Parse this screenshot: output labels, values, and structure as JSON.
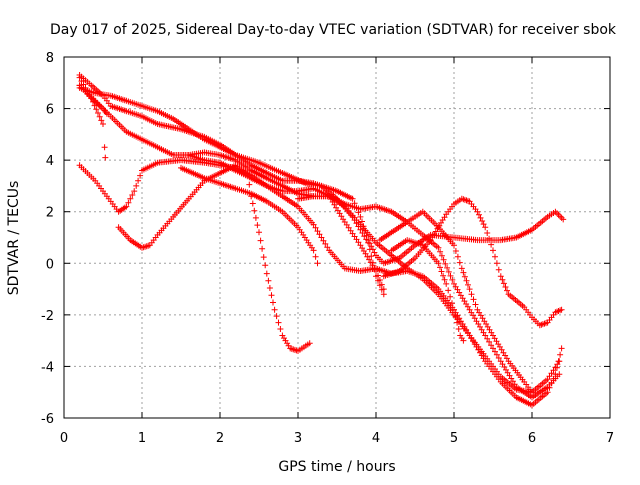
{
  "chart_data": {
    "type": "scatter",
    "title": "Day 017 of 2025, Sidereal Day-to-day VTEC variation (SDTVAR) for receiver sbok",
    "xlabel": "GPS time / hours",
    "ylabel": "SDTVAR / TECUs",
    "xlim": [
      0,
      7
    ],
    "ylim": [
      -6,
      8
    ],
    "xticks": [
      "0",
      "1",
      "2",
      "3",
      "4",
      "5",
      "6",
      "7"
    ],
    "yticks": [
      "-6",
      "-4",
      "-2",
      "0",
      "2",
      "4",
      "6",
      "8"
    ],
    "grid": true,
    "marker": "+",
    "color": "#ff0000",
    "series": [
      {
        "name": "track-1",
        "points": [
          [
            0.2,
            7.2
          ],
          [
            0.35,
            6.4
          ],
          [
            0.5,
            5.4
          ],
          [
            0.52,
            4.5
          ],
          [
            0.53,
            4.1
          ]
        ]
      },
      {
        "name": "track-2",
        "points": [
          [
            0.2,
            7.3
          ],
          [
            0.35,
            6.9
          ],
          [
            0.5,
            6.5
          ],
          [
            0.6,
            6.1
          ],
          [
            0.8,
            5.9
          ],
          [
            1.0,
            5.7
          ],
          [
            1.2,
            5.4
          ],
          [
            1.5,
            5.2
          ],
          [
            1.8,
            4.9
          ],
          [
            2.0,
            4.6
          ],
          [
            2.2,
            4.2
          ],
          [
            2.5,
            3.9
          ],
          [
            2.8,
            3.5
          ],
          [
            3.1,
            3.1
          ],
          [
            3.3,
            3.0
          ],
          [
            3.5,
            2.8
          ],
          [
            3.7,
            2.5
          ],
          [
            3.8,
            1.8
          ],
          [
            3.9,
            0.9
          ],
          [
            4.0,
            0.3
          ],
          [
            4.1,
            0.0
          ],
          [
            4.3,
            0.2
          ],
          [
            4.5,
            0.7
          ],
          [
            4.7,
            1.1
          ],
          [
            5.0,
            1.0
          ],
          [
            5.3,
            0.9
          ],
          [
            5.6,
            0.9
          ],
          [
            5.8,
            1.0
          ],
          [
            6.0,
            1.3
          ],
          [
            6.2,
            1.8
          ],
          [
            6.3,
            2.0
          ],
          [
            6.4,
            1.7
          ]
        ]
      },
      {
        "name": "track-3",
        "points": [
          [
            0.2,
            6.9
          ],
          [
            0.4,
            6.3
          ],
          [
            0.6,
            5.7
          ],
          [
            0.8,
            5.1
          ],
          [
            1.0,
            4.8
          ],
          [
            1.2,
            4.5
          ],
          [
            1.4,
            4.2
          ],
          [
            1.6,
            4.2
          ],
          [
            1.8,
            4.3
          ],
          [
            2.0,
            4.2
          ],
          [
            2.2,
            4.0
          ],
          [
            2.4,
            3.6
          ],
          [
            2.6,
            3.3
          ],
          [
            2.8,
            3.0
          ],
          [
            3.0,
            2.7
          ],
          [
            3.2,
            2.6
          ],
          [
            3.4,
            2.6
          ],
          [
            3.6,
            2.3
          ],
          [
            3.8,
            2.1
          ],
          [
            4.0,
            2.2
          ],
          [
            4.2,
            2.0
          ],
          [
            4.4,
            1.6
          ],
          [
            4.6,
            1.1
          ],
          [
            4.8,
            0.6
          ],
          [
            5.0,
            -0.8
          ],
          [
            5.2,
            -1.8
          ],
          [
            5.4,
            -2.8
          ],
          [
            5.6,
            -3.8
          ],
          [
            5.8,
            -4.8
          ],
          [
            6.0,
            -5.2
          ],
          [
            6.2,
            -4.8
          ],
          [
            6.35,
            -4.3
          ]
        ]
      },
      {
        "name": "track-4",
        "points": [
          [
            0.2,
            6.9
          ],
          [
            0.35,
            6.4
          ],
          [
            0.5,
            6.0
          ],
          [
            0.55,
            5.8
          ]
        ]
      },
      {
        "name": "track-5",
        "points": [
          [
            0.2,
            3.8
          ],
          [
            0.4,
            3.2
          ],
          [
            0.6,
            2.4
          ],
          [
            0.7,
            2.0
          ],
          [
            0.8,
            2.2
          ],
          [
            0.9,
            2.8
          ],
          [
            1.0,
            3.6
          ],
          [
            1.2,
            3.9
          ],
          [
            1.5,
            4.0
          ],
          [
            1.8,
            3.9
          ],
          [
            2.0,
            3.8
          ],
          [
            2.2,
            3.7
          ],
          [
            2.4,
            3.4
          ],
          [
            2.6,
            3.0
          ],
          [
            2.8,
            2.6
          ],
          [
            3.0,
            2.2
          ],
          [
            3.2,
            1.5
          ],
          [
            3.4,
            0.5
          ],
          [
            3.6,
            -0.2
          ],
          [
            3.8,
            -0.3
          ],
          [
            4.0,
            -0.2
          ],
          [
            4.2,
            -0.4
          ],
          [
            4.4,
            -0.3
          ],
          [
            4.6,
            -0.5
          ],
          [
            4.8,
            -1.0
          ],
          [
            5.0,
            -1.8
          ],
          [
            5.2,
            -2.8
          ],
          [
            5.4,
            -3.8
          ],
          [
            5.6,
            -4.6
          ],
          [
            5.8,
            -5.2
          ],
          [
            6.0,
            -5.5
          ],
          [
            6.2,
            -5.0
          ],
          [
            6.3,
            -4.3
          ],
          [
            6.38,
            -3.3
          ]
        ]
      },
      {
        "name": "track-6",
        "points": [
          [
            0.2,
            6.8
          ],
          [
            0.4,
            6.6
          ],
          [
            0.6,
            6.5
          ],
          [
            0.8,
            6.3
          ],
          [
            1.0,
            6.1
          ],
          [
            1.2,
            5.9
          ],
          [
            1.4,
            5.6
          ],
          [
            1.6,
            5.2
          ],
          [
            1.8,
            4.8
          ],
          [
            2.0,
            4.5
          ],
          [
            2.2,
            4.2
          ],
          [
            2.4,
            3.8
          ],
          [
            2.6,
            3.5
          ],
          [
            2.8,
            3.2
          ],
          [
            3.0,
            3.2
          ],
          [
            3.2,
            3.1
          ],
          [
            3.3,
            3.0
          ],
          [
            3.5,
            2.5
          ],
          [
            3.7,
            1.8
          ],
          [
            3.9,
            0.8
          ],
          [
            4.0,
            -0.5
          ],
          [
            4.1,
            -1.2
          ]
        ]
      },
      {
        "name": "track-7",
        "points": [
          [
            0.7,
            1.4
          ],
          [
            0.85,
            0.9
          ],
          [
            1.0,
            0.6
          ],
          [
            1.1,
            0.7
          ],
          [
            1.2,
            1.1
          ],
          [
            1.4,
            1.8
          ],
          [
            1.6,
            2.5
          ],
          [
            1.8,
            3.2
          ],
          [
            2.0,
            3.5
          ],
          [
            2.2,
            3.8
          ],
          [
            2.35,
            3.5
          ],
          [
            2.4,
            2.6
          ],
          [
            2.5,
            1.2
          ],
          [
            2.6,
            -0.4
          ],
          [
            2.7,
            -1.8
          ],
          [
            2.8,
            -2.8
          ],
          [
            2.9,
            -3.3
          ],
          [
            3.0,
            -3.4
          ],
          [
            3.15,
            -3.1
          ]
        ]
      },
      {
        "name": "track-8",
        "points": [
          [
            1.5,
            3.7
          ],
          [
            1.8,
            3.3
          ],
          [
            2.0,
            3.1
          ],
          [
            2.2,
            2.9
          ],
          [
            2.4,
            2.7
          ],
          [
            2.6,
            2.4
          ],
          [
            2.8,
            2.0
          ],
          [
            3.0,
            1.4
          ],
          [
            3.2,
            0.5
          ],
          [
            3.25,
            0.0
          ]
        ]
      },
      {
        "name": "track-9",
        "points": [
          [
            1.6,
            4.2
          ],
          [
            1.8,
            4.0
          ],
          [
            2.0,
            3.9
          ],
          [
            2.2,
            3.6
          ],
          [
            2.4,
            3.3
          ],
          [
            2.6,
            3.0
          ],
          [
            2.8,
            2.8
          ],
          [
            3.0,
            2.8
          ],
          [
            3.2,
            2.9
          ],
          [
            3.4,
            2.6
          ],
          [
            3.6,
            1.6
          ],
          [
            3.8,
            0.7
          ],
          [
            4.0,
            -0.3
          ],
          [
            4.1,
            -1.0
          ]
        ]
      },
      {
        "name": "track-10",
        "points": [
          [
            3.0,
            2.5
          ],
          [
            3.2,
            2.6
          ],
          [
            3.4,
            2.6
          ],
          [
            3.6,
            2.2
          ],
          [
            3.8,
            1.5
          ],
          [
            4.0,
            0.8
          ],
          [
            4.2,
            0.3
          ],
          [
            4.4,
            -0.2
          ],
          [
            4.6,
            -0.6
          ],
          [
            4.8,
            -1.2
          ],
          [
            5.0,
            -2.0
          ],
          [
            5.2,
            -2.8
          ],
          [
            5.4,
            -3.6
          ],
          [
            5.6,
            -4.4
          ],
          [
            5.8,
            -4.9
          ],
          [
            6.0,
            -5.0
          ],
          [
            6.2,
            -4.5
          ],
          [
            6.35,
            -3.8
          ]
        ]
      },
      {
        "name": "track-11",
        "points": [
          [
            4.05,
            0.9
          ],
          [
            4.2,
            1.2
          ],
          [
            4.4,
            1.6
          ],
          [
            4.6,
            2.0
          ],
          [
            4.8,
            1.4
          ],
          [
            5.0,
            0.7
          ],
          [
            5.1,
            -0.2
          ],
          [
            5.2,
            -1.0
          ],
          [
            5.3,
            -1.8
          ],
          [
            5.5,
            -2.8
          ],
          [
            5.7,
            -3.8
          ],
          [
            5.9,
            -4.6
          ],
          [
            6.0,
            -5.0
          ]
        ]
      },
      {
        "name": "track-12",
        "points": [
          [
            4.1,
            -0.5
          ],
          [
            4.3,
            -0.3
          ],
          [
            4.5,
            0.2
          ],
          [
            4.7,
            0.9
          ],
          [
            4.9,
            1.9
          ],
          [
            5.0,
            2.3
          ],
          [
            5.1,
            2.5
          ],
          [
            5.2,
            2.4
          ],
          [
            5.3,
            2.0
          ],
          [
            5.4,
            1.4
          ],
          [
            5.5,
            0.5
          ],
          [
            5.6,
            -0.5
          ],
          [
            5.7,
            -1.2
          ],
          [
            5.9,
            -1.7
          ],
          [
            6.0,
            -2.1
          ],
          [
            6.1,
            -2.4
          ],
          [
            6.2,
            -2.3
          ],
          [
            6.3,
            -1.9
          ],
          [
            6.38,
            -1.8
          ]
        ]
      },
      {
        "name": "track-13",
        "points": [
          [
            4.2,
            0.5
          ],
          [
            4.4,
            0.9
          ],
          [
            4.6,
            0.7
          ],
          [
            4.8,
            0.0
          ],
          [
            4.9,
            -0.8
          ],
          [
            5.0,
            -1.8
          ],
          [
            5.08,
            -2.8
          ],
          [
            5.12,
            -3.0
          ]
        ]
      }
    ]
  }
}
